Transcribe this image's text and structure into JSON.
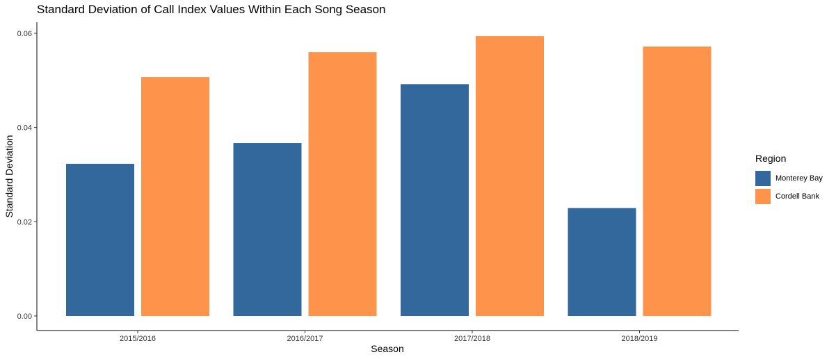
{
  "chart_data": {
    "type": "bar",
    "title": "Standard Deviation of Call Index Values Within Each Song Season",
    "xlabel": "Season",
    "ylabel": "Standard Deviation",
    "categories": [
      "2015/2016",
      "2016/2017",
      "2017/2018",
      "2018/2019"
    ],
    "series": [
      {
        "name": "Monterey Bay",
        "color": "#33689c",
        "values": [
          0.0323,
          0.0367,
          0.0492,
          0.0229
        ]
      },
      {
        "name": "Cordell Bank",
        "color": "#fe934c",
        "values": [
          0.0507,
          0.056,
          0.0594,
          0.0572
        ]
      }
    ],
    "ylim": [
      0,
      0.06
    ],
    "yticks": [
      "0.00",
      "0.02",
      "0.04",
      "0.06"
    ],
    "grid": false,
    "legend": {
      "title": "Region",
      "position": "right"
    }
  }
}
